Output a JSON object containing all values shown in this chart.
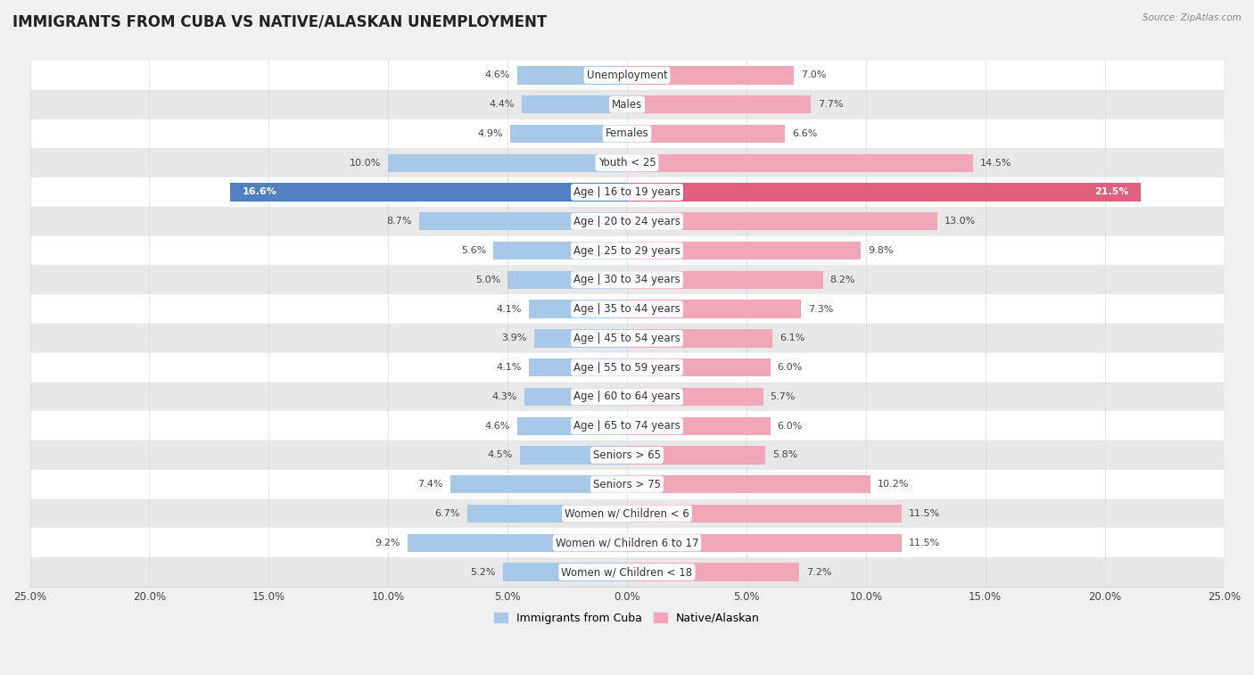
{
  "title": "IMMIGRANTS FROM CUBA VS NATIVE/ALASKAN UNEMPLOYMENT",
  "source": "Source: ZipAtlas.com",
  "categories": [
    "Unemployment",
    "Males",
    "Females",
    "Youth < 25",
    "Age | 16 to 19 years",
    "Age | 20 to 24 years",
    "Age | 25 to 29 years",
    "Age | 30 to 34 years",
    "Age | 35 to 44 years",
    "Age | 45 to 54 years",
    "Age | 55 to 59 years",
    "Age | 60 to 64 years",
    "Age | 65 to 74 years",
    "Seniors > 65",
    "Seniors > 75",
    "Women w/ Children < 6",
    "Women w/ Children 6 to 17",
    "Women w/ Children < 18"
  ],
  "cuba_values": [
    4.6,
    4.4,
    4.9,
    10.0,
    16.6,
    8.7,
    5.6,
    5.0,
    4.1,
    3.9,
    4.1,
    4.3,
    4.6,
    4.5,
    7.4,
    6.7,
    9.2,
    5.2
  ],
  "native_values": [
    7.0,
    7.7,
    6.6,
    14.5,
    21.5,
    13.0,
    9.8,
    8.2,
    7.3,
    6.1,
    6.0,
    5.7,
    6.0,
    5.8,
    10.2,
    11.5,
    11.5,
    7.2
  ],
  "cuba_color": "#a8c8e8",
  "native_color": "#f0a8b8",
  "cuba_highlight_color": "#5080c0",
  "native_highlight_color": "#e06080",
  "highlight_row": 4,
  "xlim": 25.0,
  "bar_height": 0.62,
  "bg_color": "#f0f0f0",
  "row_bg_white": "#ffffff",
  "row_bg_gray": "#e8e8e8",
  "label_fontsize": 8.5,
  "value_fontsize": 8.0,
  "title_fontsize": 12,
  "legend_labels": [
    "Immigrants from Cuba",
    "Native/Alaskan"
  ],
  "axis_label_left": "25.0%",
  "axis_label_right": "25.0%"
}
